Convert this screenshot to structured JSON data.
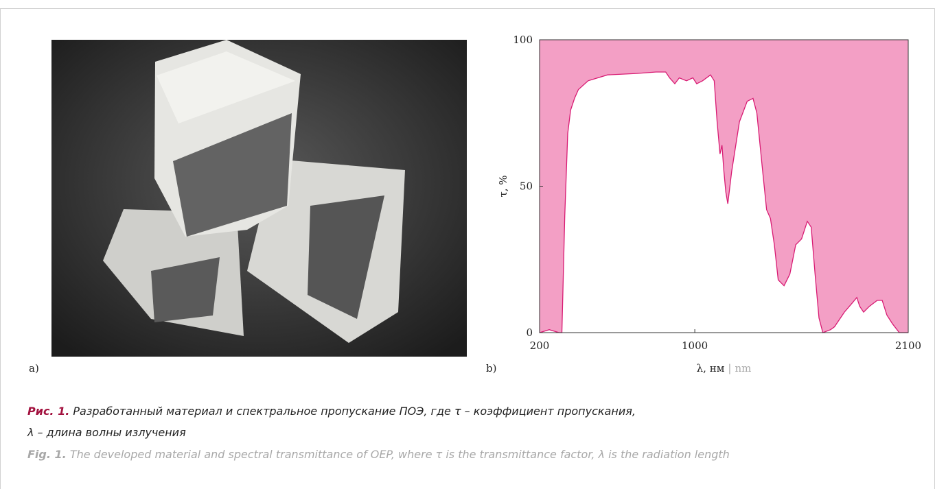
{
  "chart_data": {
    "type": "area",
    "x_label": {
      "ru": "λ, нм",
      "separator": "|",
      "en": "nm"
    },
    "y_label": "τ, %",
    "x": [
      200,
      250,
      300,
      315,
      330,
      345,
      360,
      380,
      400,
      450,
      550,
      700,
      800,
      850,
      870,
      897,
      920,
      957,
      990,
      1010,
      1040,
      1081,
      1100,
      1115,
      1130,
      1140,
      1150,
      1160,
      1170,
      1190,
      1230,
      1270,
      1300,
      1320,
      1350,
      1370,
      1390,
      1410,
      1430,
      1460,
      1490,
      1520,
      1550,
      1580,
      1600,
      1620,
      1640,
      1660,
      1700,
      1720,
      1771,
      1810,
      1835,
      1850,
      1870,
      1900,
      1940,
      1966,
      1990,
      2019,
      2054,
      2100
    ],
    "values": [
      0,
      1,
      0,
      0,
      40,
      68,
      76,
      80,
      83,
      86,
      88,
      88.5,
      89,
      89,
      87,
      85,
      87,
      86,
      87,
      85,
      86,
      88,
      86,
      72,
      61,
      64,
      55,
      48,
      44,
      55,
      72,
      79,
      80,
      75,
      55,
      42,
      39,
      30,
      18,
      16,
      20,
      30,
      32,
      38,
      36,
      20,
      5,
      0,
      1,
      2,
      7,
      10,
      12,
      9,
      7,
      9,
      11,
      11,
      6,
      3,
      0,
      0
    ],
    "color": "#d81b73",
    "fill_color": "#f39fc5",
    "xlim": [
      200,
      2100
    ],
    "xticks": [
      200,
      1000,
      2100
    ],
    "ylim": [
      0,
      100
    ],
    "yticks": [
      0,
      50,
      100
    ]
  },
  "panel_labels": [
    "a)",
    "b)"
  ],
  "caption": {
    "ru": {
      "label": "Рис. 1.",
      "lines": [
        "Разработанный материал и спектральное пропускание ПОЭ, где τ – коэффициент пропускания,",
        "λ – длина волны излучения"
      ]
    },
    "en": {
      "label": "Fig. 1.",
      "text": "The developed material and spectral transmittance of OEP, where τ is the transmittance factor, λ is the radiation length"
    }
  }
}
